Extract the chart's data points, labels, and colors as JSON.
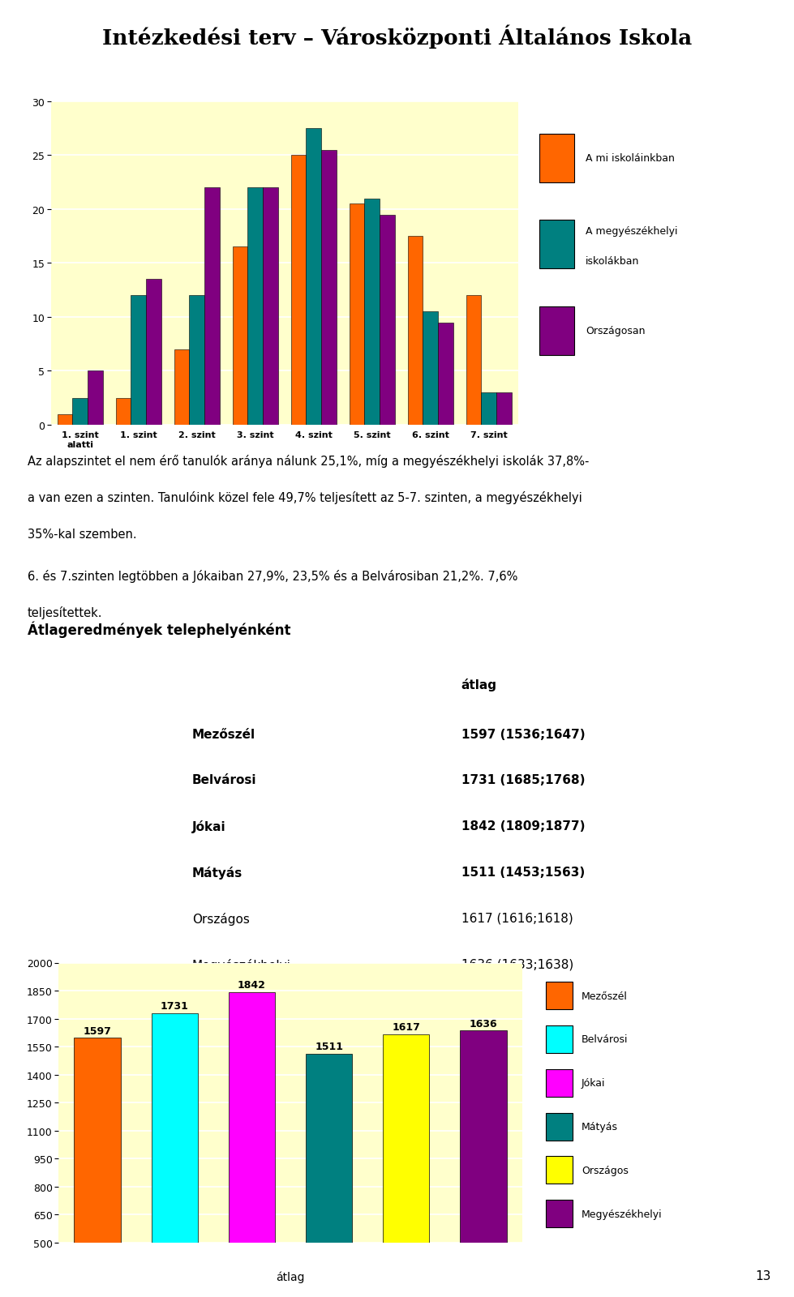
{
  "title": "Intézkedési terv – Városközponti Általános Iskola",
  "title_color": "#000000",
  "title_line_color": "#6b1a1a",
  "title_line2_color": "#00bcd4",
  "chart1": {
    "categories": [
      "1. szint\nalatti",
      "1. szint",
      "2. szint",
      "3. szint",
      "4. szint",
      "5. szint",
      "6. szint",
      "7. szint"
    ],
    "series": [
      {
        "name": "A mi iskoláinkban",
        "color": "#ff6600",
        "values": [
          1.0,
          2.5,
          7.0,
          16.5,
          25.0,
          20.5,
          17.5,
          12.0
        ]
      },
      {
        "name": "A megyészékhelyi\niskolákban",
        "color": "#008080",
        "values": [
          2.5,
          12.0,
          12.0,
          22.0,
          27.5,
          21.0,
          10.5,
          3.0
        ]
      },
      {
        "name": "Országosan",
        "color": "#800080",
        "values": [
          5.0,
          13.5,
          22.0,
          22.0,
          25.5,
          19.5,
          9.5,
          3.0
        ]
      }
    ],
    "ylim": [
      0,
      30
    ],
    "yticks": [
      0,
      5,
      10,
      15,
      20,
      25,
      30
    ],
    "bg_outer": "#00bcd4",
    "bg_plot": "#ffffcc"
  },
  "text1_line1": "Az alapszintet el nem érő tanulók aránya nálunk 25,1%, míg a megyészékhelyi iskolák 37,8%-",
  "text1_line2": "a van ezen a szinten. Tanulóink közel fele 49,7% teljesített az 5-7. szinten, a megyészékhelyi",
  "text1_line3": "35%-kal szemben.",
  "text2_line1": "6. és 7.szinten legtöbben a Jókaiban 27,9%, 23,5% és a Belvárosiban 21,2%. 7,6%",
  "text2_line2": "teljesítettek.",
  "table_title": "Átlageredmények telephelyénként",
  "table_header": "átlag",
  "table_rows": [
    {
      "name": "Mezőszél",
      "value": "1597 (1536;1647)",
      "bold": true
    },
    {
      "name": "Belvárosi",
      "value": "1731 (1685;1768)",
      "bold": true
    },
    {
      "name": "Jókai",
      "value": "1842 (1809;1877)",
      "bold": true
    },
    {
      "name": "Mátyás",
      "value": "1511 (1453;1563)",
      "bold": true
    },
    {
      "name": "Országos",
      "value": "1617 (1616;1618)",
      "bold": false
    },
    {
      "name": "Megyészékhelyi",
      "value": "1636 (1633;1638)",
      "bold": false
    }
  ],
  "chart2": {
    "categories": [
      "Mezőszél",
      "Belvárosi",
      "Jókai",
      "Mátyás",
      "Országos",
      "Megyészékhelyi"
    ],
    "values": [
      1597,
      1731,
      1842,
      1511,
      1617,
      1636
    ],
    "colors": [
      "#ff6600",
      "#00ffff",
      "#ff00ff",
      "#008080",
      "#ffff00",
      "#800080"
    ],
    "labels": [
      "1597",
      "1731",
      "1842",
      "1511",
      "1617",
      "1636"
    ],
    "xlabel": "átlag",
    "ylim": [
      500,
      2000
    ],
    "yticks": [
      500,
      650,
      800,
      950,
      1100,
      1250,
      1400,
      1550,
      1700,
      1850,
      2000
    ],
    "bg_outer": "#2e7d4f",
    "bg_plot": "#ffffcc",
    "legend_names": [
      "Mezőszél",
      "Belvárosi",
      "Jókai",
      "Mátyás",
      "Országos",
      "Megyészékhelyi"
    ]
  },
  "page_number": "13"
}
